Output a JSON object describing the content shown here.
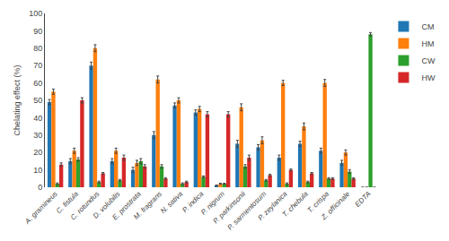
{
  "chart_data": {
    "type": "bar",
    "ylabel": "Chelating effect (%)",
    "categories": [
      "A. gramineus",
      "C. fistula",
      "C. rotundus",
      "D. volubilis",
      "E. prostrata",
      "M. fragrans",
      "N. sativa",
      "P. indica",
      "P. nigrum",
      "P. parkinsonii",
      "P. sarmentosum",
      "P. zeylanica",
      "T. chebula",
      "T. crispa",
      "Z. officinale",
      "EDTA"
    ],
    "series": [
      {
        "name": "CM",
        "values": [
          49,
          15,
          70,
          15,
          10,
          30,
          47,
          43,
          1,
          25,
          23,
          17,
          25,
          21,
          14,
          0
        ],
        "errors": [
          1.5,
          1.5,
          2.0,
          1.5,
          1.5,
          2.0,
          1.5,
          1.5,
          0.3,
          2.0,
          1.5,
          1.5,
          1.5,
          1.5,
          1.5,
          0.0
        ]
      },
      {
        "name": "HM",
        "values": [
          55,
          21,
          80,
          21,
          14,
          62,
          50,
          45,
          2,
          46,
          27,
          60,
          35,
          60,
          20,
          0
        ],
        "errors": [
          1.5,
          1.5,
          2.0,
          1.5,
          1.5,
          2.0,
          1.5,
          1.5,
          0.3,
          2.0,
          2.0,
          1.5,
          2.0,
          2.0,
          1.5,
          0.0
        ]
      },
      {
        "name": "CW",
        "values": [
          2,
          16,
          3,
          4,
          15,
          12,
          2,
          6,
          2,
          12,
          4,
          2,
          3,
          5,
          9,
          88
        ],
        "errors": [
          0.5,
          1.0,
          0.5,
          0.5,
          1.5,
          1.0,
          0.5,
          0.5,
          0.3,
          1.0,
          0.5,
          0.5,
          0.5,
          0.5,
          1.0,
          1.0
        ]
      },
      {
        "name": "HW",
        "values": [
          13,
          50,
          8,
          17,
          12,
          5,
          3,
          42,
          42,
          17,
          7,
          10,
          8,
          5,
          5,
          0
        ],
        "errors": [
          1.0,
          1.5,
          0.5,
          1.5,
          1.0,
          0.5,
          0.5,
          1.5,
          1.5,
          1.5,
          0.5,
          0.5,
          0.5,
          0.5,
          0.5,
          0.0
        ]
      }
    ],
    "ylim": [
      0,
      100
    ],
    "yticks": [
      0,
      10,
      20,
      30,
      40,
      50,
      60,
      70,
      80,
      90,
      100
    ],
    "grid": false,
    "legend": "upper right"
  }
}
